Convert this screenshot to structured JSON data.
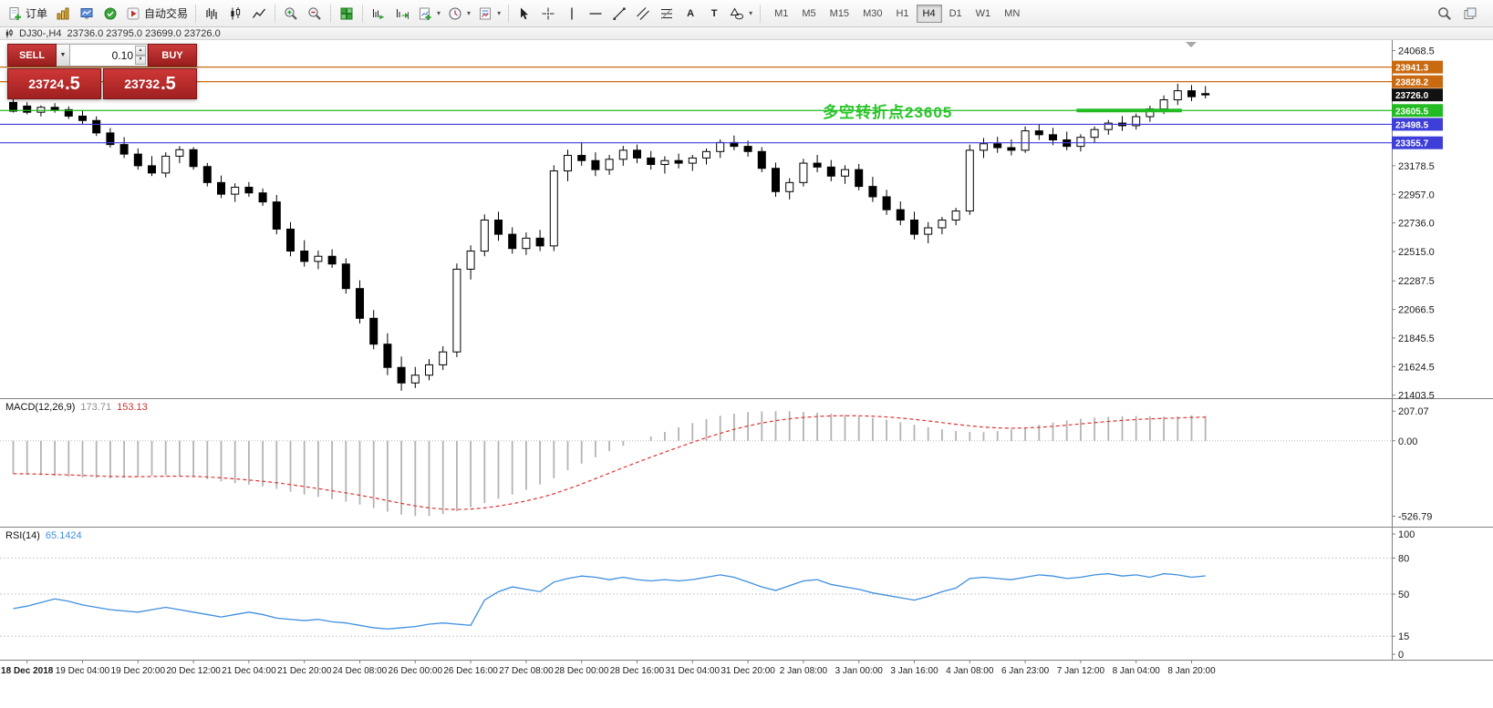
{
  "toolbar": {
    "new_order_label": "订单",
    "autotrading_label": "自动交易",
    "timeframes": [
      "M1",
      "M5",
      "M15",
      "M30",
      "H1",
      "H4",
      "D1",
      "W1",
      "MN"
    ],
    "active_timeframe": "H4"
  },
  "glyphs": {
    "caret_down": "▾",
    "sell_caret": "▼",
    "spin_up": "▲",
    "spin_down": "▼",
    "text_tool": "A",
    "label_tool": "T"
  },
  "chart_header": {
    "symbol_period": "DJ30-,H4",
    "ohlc": "23736.0 23795.0 23699.0 23726.0"
  },
  "trade_panel": {
    "sell_label": "SELL",
    "buy_label": "BUY",
    "volume": "0.10",
    "sell_price_base": "23724",
    "sell_price_big": ".5",
    "buy_price_base": "23732",
    "buy_price_big": ".5"
  },
  "annotation": {
    "text": "多空转折点23605",
    "color": "#2bc42b"
  },
  "indicators": {
    "macd_label": "MACD(12,26,9)",
    "macd_value_main": "173.71",
    "macd_value_signal": "153.13",
    "rsi_label": "RSI(14)",
    "rsi_value": "65.1424"
  },
  "levels": [
    {
      "price": 23941.3,
      "color": "#c96a10",
      "label": "23941.3"
    },
    {
      "price": 23828.2,
      "color": "#c96a10",
      "label": "23828.2"
    },
    {
      "price": 23726.0,
      "color": "#111111",
      "label": "23726.0",
      "line": false
    },
    {
      "price": 23605.5,
      "color": "#22bb22",
      "label": "23605.5"
    },
    {
      "price": 23498.5,
      "color": "#3e3ed8",
      "label": "23498.5"
    },
    {
      "price": 23355.7,
      "color": "#3e3ed8",
      "label": "23355.7"
    }
  ],
  "green_segment": {
    "price": 23605.5,
    "from_candle": 77,
    "to_candle": 84,
    "color": "#22bb22"
  },
  "chart_data": [
    {
      "type": "candlestick",
      "symbol": "DJ30-",
      "timeframe": "H4",
      "current": {
        "open": 23736.0,
        "high": 23795.0,
        "low": 23699.0,
        "close": 23726.0
      },
      "ylim": [
        21380,
        24150
      ],
      "y_ticks": [
        "24068.5",
        "23178.5",
        "22957.0",
        "22736.0",
        "22515.0",
        "22287.5",
        "22066.5",
        "21845.5",
        "21624.5",
        "21403.5"
      ],
      "time_labels": [
        "18 Dec 2018",
        "19 Dec 04:00",
        "19 Dec 20:00",
        "20 Dec 12:00",
        "21 Dec 04:00",
        "21 Dec 20:00",
        "24 Dec 08:00",
        "26 Dec 00:00",
        "26 Dec 16:00",
        "27 Dec 08:00",
        "28 Dec 00:00",
        "28 Dec 16:00",
        "31 Dec 04:00",
        "31 Dec 20:00",
        "2 Jan 08:00",
        "3 Jan 00:00",
        "3 Jan 16:00",
        "4 Jan 08:00",
        "6 Jan 23:00",
        "7 Jan 12:00",
        "8 Jan 04:00",
        "8 Jan 20:00"
      ],
      "label_start_index": 1,
      "label_every": 4,
      "ohlc": [
        [
          23668,
          23692,
          23590,
          23600
        ],
        [
          23640,
          23670,
          23575,
          23592
        ],
        [
          23592,
          23645,
          23560,
          23630
        ],
        [
          23630,
          23662,
          23588,
          23612
        ],
        [
          23612,
          23638,
          23540,
          23562
        ],
        [
          23562,
          23610,
          23498,
          23528
        ],
        [
          23528,
          23560,
          23408,
          23432
        ],
        [
          23432,
          23470,
          23318,
          23342
        ],
        [
          23342,
          23400,
          23238,
          23268
        ],
        [
          23268,
          23312,
          23148,
          23178
        ],
        [
          23178,
          23252,
          23098,
          23122
        ],
        [
          23122,
          23282,
          23088,
          23252
        ],
        [
          23252,
          23330,
          23198,
          23302
        ],
        [
          23302,
          23322,
          23148,
          23172
        ],
        [
          23172,
          23200,
          23018,
          23048
        ],
        [
          23048,
          23102,
          22928,
          22958
        ],
        [
          22958,
          23042,
          22898,
          23012
        ],
        [
          23012,
          23052,
          22938,
          22968
        ],
        [
          22968,
          23002,
          22868,
          22898
        ],
        [
          22898,
          22952,
          22648,
          22688
        ],
        [
          22688,
          22742,
          22478,
          22518
        ],
        [
          22518,
          22602,
          22398,
          22438
        ],
        [
          22438,
          22522,
          22378,
          22478
        ],
        [
          22478,
          22532,
          22388,
          22418
        ],
        [
          22418,
          22462,
          22188,
          22228
        ],
        [
          22228,
          22292,
          21958,
          21998
        ],
        [
          21998,
          22062,
          21758,
          21798
        ],
        [
          21798,
          21882,
          21558,
          21618
        ],
        [
          21618,
          21702,
          21438,
          21498
        ],
        [
          21498,
          21622,
          21458,
          21558
        ],
        [
          21558,
          21682,
          21518,
          21638
        ],
        [
          21638,
          21782,
          21598,
          21738
        ],
        [
          21738,
          22422,
          21698,
          22378
        ],
        [
          22378,
          22562,
          22298,
          22518
        ],
        [
          22518,
          22802,
          22478,
          22758
        ],
        [
          22758,
          22822,
          22598,
          22648
        ],
        [
          22648,
          22702,
          22498,
          22538
        ],
        [
          22538,
          22662,
          22488,
          22618
        ],
        [
          22618,
          22682,
          22518,
          22558
        ],
        [
          22558,
          23182,
          22518,
          23138
        ],
        [
          23138,
          23302,
          23058,
          23258
        ],
        [
          23258,
          23362,
          23178,
          23218
        ],
        [
          23218,
          23282,
          23098,
          23148
        ],
        [
          23148,
          23262,
          23108,
          23228
        ],
        [
          23228,
          23332,
          23178,
          23298
        ],
        [
          23298,
          23342,
          23198,
          23238
        ],
        [
          23238,
          23292,
          23148,
          23188
        ],
        [
          23188,
          23252,
          23118,
          23218
        ],
        [
          23218,
          23272,
          23158,
          23198
        ],
        [
          23198,
          23262,
          23138,
          23238
        ],
        [
          23238,
          23312,
          23188,
          23288
        ],
        [
          23288,
          23382,
          23238,
          23358
        ],
        [
          23358,
          23412,
          23298,
          23328
        ],
        [
          23328,
          23372,
          23248,
          23288
        ],
        [
          23288,
          23322,
          23128,
          23158
        ],
        [
          23158,
          23202,
          22938,
          22978
        ],
        [
          22978,
          23082,
          22918,
          23048
        ],
        [
          23048,
          23232,
          23018,
          23198
        ],
        [
          23198,
          23262,
          23128,
          23168
        ],
        [
          23168,
          23222,
          23058,
          23098
        ],
        [
          23098,
          23182,
          23038,
          23148
        ],
        [
          23148,
          23192,
          22988,
          23018
        ],
        [
          23018,
          23092,
          22898,
          22938
        ],
        [
          22938,
          22992,
          22798,
          22838
        ],
        [
          22838,
          22902,
          22718,
          22758
        ],
        [
          22758,
          22822,
          22608,
          22648
        ],
        [
          22648,
          22742,
          22578,
          22698
        ],
        [
          22698,
          22782,
          22648,
          22758
        ],
        [
          22758,
          22852,
          22718,
          22828
        ],
        [
          22828,
          23342,
          22798,
          23298
        ],
        [
          23298,
          23392,
          23238,
          23348
        ],
        [
          23348,
          23402,
          23278,
          23318
        ],
        [
          23318,
          23382,
          23258,
          23298
        ],
        [
          23298,
          23482,
          23278,
          23448
        ],
        [
          23448,
          23502,
          23378,
          23418
        ],
        [
          23418,
          23472,
          23338,
          23378
        ],
        [
          23378,
          23442,
          23298,
          23328
        ],
        [
          23328,
          23422,
          23288,
          23398
        ],
        [
          23398,
          23482,
          23358,
          23458
        ],
        [
          23458,
          23532,
          23418,
          23508
        ],
        [
          23508,
          23562,
          23448,
          23488
        ],
        [
          23488,
          23582,
          23458,
          23558
        ],
        [
          23558,
          23642,
          23518,
          23618
        ],
        [
          23618,
          23722,
          23578,
          23688
        ],
        [
          23688,
          23812,
          23648,
          23758
        ],
        [
          23758,
          23802,
          23678,
          23712
        ],
        [
          23736,
          23795,
          23699,
          23726
        ]
      ]
    },
    {
      "type": "bar",
      "name": "MACD(12,26,9)",
      "display": [
        "173.71",
        "153.13"
      ],
      "y_ticks": [
        "207.07",
        "0.00",
        "-526.79"
      ],
      "ylim": [
        -600,
        285
      ],
      "signal_method": "ema9",
      "values": [
        -230,
        -236,
        -240,
        -245,
        -250,
        -256,
        -260,
        -262,
        -258,
        -250,
        -244,
        -240,
        -246,
        -255,
        -268,
        -283,
        -296,
        -306,
        -318,
        -335,
        -356,
        -375,
        -392,
        -408,
        -425,
        -445,
        -470,
        -495,
        -515,
        -527,
        -524,
        -512,
        -492,
        -465,
        -435,
        -405,
        -375,
        -342,
        -305,
        -262,
        -205,
        -160,
        -115,
        -72,
        -35,
        -2,
        30,
        62,
        94,
        124,
        152,
        175,
        190,
        200,
        205,
        207,
        206,
        202,
        196,
        190,
        182,
        172,
        160,
        146,
        130,
        112,
        95,
        80,
        68,
        62,
        60,
        68,
        80,
        95,
        112,
        128,
        142,
        154,
        162,
        168,
        172,
        174,
        172,
        169,
        172,
        178,
        173.71
      ]
    },
    {
      "type": "line",
      "name": "RSI(14)",
      "display": "65.1424",
      "y_ticks": [
        "100",
        "80",
        "50",
        "15",
        "0"
      ],
      "level_lines": [
        80,
        50,
        15
      ],
      "ylim": [
        0,
        100
      ],
      "values": [
        38,
        40,
        43,
        46,
        44,
        41,
        39,
        37,
        36,
        35,
        37,
        39,
        37,
        35,
        33,
        31,
        33,
        35,
        33,
        30,
        29,
        28,
        29,
        27,
        26,
        24,
        22,
        21,
        22,
        23,
        25,
        26,
        25,
        24,
        45,
        52,
        56,
        54,
        52,
        60,
        63,
        65,
        64,
        62,
        64,
        62,
        61,
        62,
        61,
        62,
        64,
        66,
        64,
        60,
        56,
        53,
        57,
        61,
        62,
        58,
        56,
        54,
        51,
        49,
        47,
        45,
        48,
        52,
        55,
        63,
        64,
        63,
        62,
        64,
        66,
        65,
        63,
        64,
        66,
        67,
        65,
        66,
        64,
        67,
        66,
        64,
        65.14
      ]
    }
  ]
}
